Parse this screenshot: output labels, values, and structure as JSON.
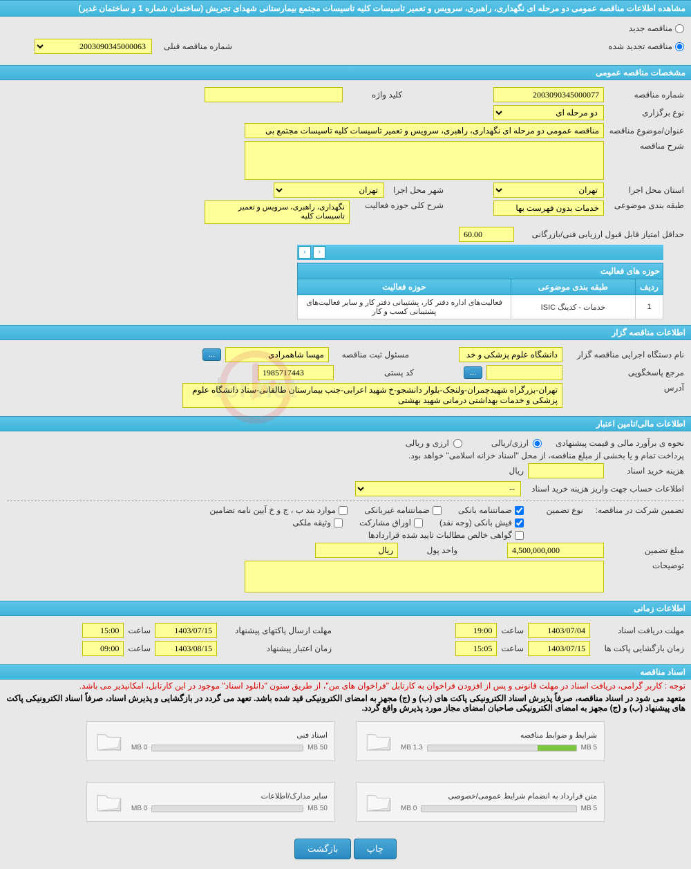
{
  "header": {
    "title": "مشاهده اطلاعات مناقصه عمومی دو مرحله ای نگهداری، راهبری، سرویس و تعمیر تاسیسات کلیه تاسیسات مجتمع بیمارستانی شهدای تجریش (ساختمان شماره 1 و ساختمان غدیر)"
  },
  "top": {
    "radio_new": "مناقصه جدید",
    "radio_renewed": "مناقصه تجدید شده",
    "prev_number_label": "شماره مناقصه قبلی",
    "prev_number_value": "2003090345000063"
  },
  "sections": {
    "general": "مشخصات مناقصه عمومی",
    "holder": "اطلاعات مناقصه گزار",
    "finance": "اطلاعات مالی/تامین اعتبار",
    "timing": "اطلاعات زمانی",
    "docs": "اسناد مناقصه"
  },
  "general": {
    "number_label": "شماره مناقصه",
    "number": "2003090345000077",
    "keyword_label": "کلید واژه",
    "keyword": "",
    "type_label": "نوع برگزاری",
    "type": "دو مرحله ای",
    "subject_label": "عنوان/موضوع مناقصه",
    "subject": "مناقصه عمومی دو مرحله ای نگهداری، راهبری، سرویس و تعمیر تاسیسات کلیه تاسیسات مجتمع بی",
    "desc_label": "شرح مناقصه",
    "desc": "",
    "province_label": "استان محل اجرا",
    "province": "تهران",
    "city_label": "شهر محل اجرا",
    "city": "تهران",
    "category_label": "طبقه بندی موضوعی",
    "category": "خدمات بدون فهرست بها",
    "scope_label": "شرح کلی حوزه فعالیت",
    "scope": "نگهداری، راهبری، سرویس و تعمیر تاسیسات کلیه",
    "min_score_label": "حداقل امتیاز قابل قبول ارزیابی فنی/بازرگانی",
    "min_score": "60.00",
    "activity_header": "حوزه های فعالیت",
    "table_cols": [
      "ردیف",
      "طبقه بندی موضوعی",
      "حوزه فعالیت"
    ],
    "table_rows": [
      [
        "1",
        "خدمات - کدینگ ISIC",
        "فعالیت‌های  اداره دفتر کار، پشتیبانی دفتر کار و سایر فعالیت‌های پشتیبانی کسب و کار"
      ]
    ]
  },
  "holder": {
    "exec_label": "نام دستگاه اجرایی مناقصه گزار",
    "exec": "دانشگاه علوم پزشکی و خد",
    "registrar_label": "مسئول ثبت مناقصه",
    "registrar": "مهسا شاهمرادی",
    "responder_label": "مرجع پاسخگویی",
    "responder": "",
    "postal_label": "کد پستی",
    "postal": "1985717443",
    "address_label": "آدرس",
    "address": "تهران-بزرگراه شهیدچمران-ولنجک-بلوار دانشجو-خ شهید اعرابی-جنب بیمارستان طالقانی-ستاد دانشگاه علوم پزشکی و خدمات بهداشتی درمانی شهید بهشتی"
  },
  "finance": {
    "method_label": "نحوه ی برآورد مالی و قیمت پیشنهادی",
    "radio_arz": "ارزی/ریالی",
    "radio_arzriyal": "ارزی و ریالی",
    "treasury_note": "پرداخت تمام و یا بخشی از مبلغ مناقصه، از محل \"اسناد خزانه اسلامی\" خواهد بود.",
    "doc_cost_label": "هزینه خرید اسناد",
    "doc_cost": "",
    "riyal": "ریال",
    "account_label": "اطلاعات حساب جهت واریز هزینه خرید اسناد",
    "account": "--",
    "guarantee_label": "تضمین شرکت در مناقصه:",
    "guarantee_type_label": "نوع تضمین",
    "chk1": "ضمانتنامه بانکی",
    "chk2": "ضمانتنامه غیربانکی",
    "chk3": "موارد بند ب ، ج و خ آیین نامه تضامین",
    "chk4": "فیش بانکی (وجه نقد)",
    "chk5": "اوراق مشارکت",
    "chk6": "وثیقه ملکی",
    "chk7": "گواهی خالص مطالبات تایید شده قراردادها",
    "amount_label": "مبلغ تضمین",
    "amount": "4,500,000,000",
    "unit_label": "واحد پول",
    "unit": "ریال",
    "notes_label": "توضیحات",
    "notes": ""
  },
  "timing": {
    "receive_label": "مهلت دریافت اسناد",
    "receive_date": "1403/07/04",
    "receive_time": "19:00",
    "send_label": "مهلت ارسال پاکتهای پیشنهاد",
    "send_date": "1403/07/15",
    "send_time": "15:00",
    "open_label": "زمان بازگشایی پاکت ها",
    "open_date": "1403/07/15",
    "open_time": "15:05",
    "valid_label": "زمان اعتبار پیشنهاد",
    "valid_date": "1403/08/15",
    "valid_time": "09:00",
    "hour_label": "ساعت"
  },
  "docs": {
    "red_note": "توجه : کاربر گرامی، دریافت اسناد در مهلت قانونی و پس از افزودن فراخوان به کارتابل \"فراخوان های من\"، از طریق ستون \"دانلود اسناد\" موجود در این کارتابل، امکانپذیر می باشد.",
    "black_note": "متعهد می شود در اسناد مناقصه، صرفاً پذیرش اسناد الکترونیکی پاکت های (ب) و (ج) مجهز به امضای الکترونیکی قید شده باشد. تعهد می گردد در بازگشایی و پذیرش اسناد، صرفاً اسناد الکترونیکی پاکت های پیشنهاد (ب) و (ج) مجهز به امضای الکترونیکی صاحبان امضای مجاز مورد پذیرش واقع گردد.",
    "cards": [
      {
        "title": "شرایط و ضوابط مناقصه",
        "size": "1.3 MB",
        "max": "5 MB",
        "pct": 26
      },
      {
        "title": "اسناد فنی",
        "size": "0 MB",
        "max": "50 MB",
        "pct": 0
      },
      {
        "title": "متن قرارداد به انضمام شرایط عمومی/خصوصی",
        "size": "0 MB",
        "max": "5 MB",
        "pct": 0
      },
      {
        "title": "سایر مدارک/اطلاعات",
        "size": "0 MB",
        "max": "50 MB",
        "pct": 0
      }
    ]
  },
  "buttons": {
    "print": "چاپ",
    "back": "بازگشت"
  },
  "colors": {
    "header_bg": "#3eb5da",
    "field_bg": "#ffff99",
    "progress_fill": "#7ec63f"
  }
}
